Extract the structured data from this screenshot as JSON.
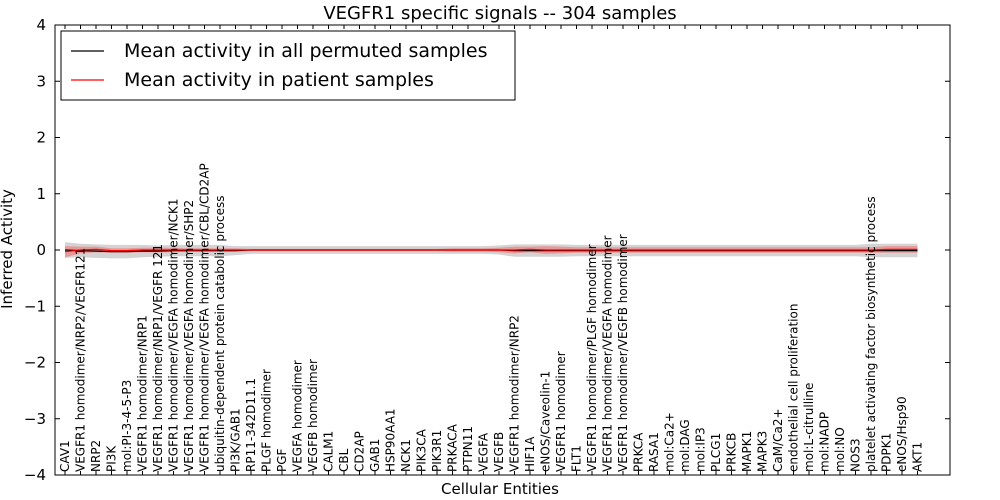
{
  "chart_data": {
    "type": "line",
    "title": "VEGFR1 specific signals -- 304 samples",
    "xlabel": "Cellular Entities",
    "ylabel": "Inferred Activity",
    "ylim": [
      -4,
      4
    ],
    "yticks": [
      -4,
      -3,
      -2,
      -1,
      0,
      1,
      2,
      3,
      4
    ],
    "ytick_labels": [
      "−4",
      "−3",
      "−2",
      "−1",
      "0",
      "1",
      "2",
      "3",
      "4"
    ],
    "legend_position": "top-left",
    "grid": false,
    "categories": [
      "CAV1",
      "VEGFR1 homodimer/NRP2/VEGFR121",
      "NRP2",
      "PI3K",
      "mol:PI-3-4-5-P3",
      "VEGFR1 homodimer/NRP1",
      "VEGFR1 homodimer/NRP1/VEGFR 121",
      "VEGFR1 homodimer/VEGFA homodimer/NCK1",
      "VEGFR1 homodimer/VEGFA homodimer/SHP2",
      "VEGFR1 homodimer/VEGFA homodimer/CBL/CD2AP",
      "ubiquitin-dependent protein catabolic process",
      "PI3K/GAB1",
      "RP11-342D11.1",
      "PLGF homodimer",
      "PGF",
      "VEGFA homodimer",
      "VEGFB homodimer",
      "CALM1",
      "CBL",
      "CD2AP",
      "GAB1",
      "HSP90AA1",
      "NCK1",
      "PIK3CA",
      "PIK3R1",
      "PRKACA",
      "PTPN11",
      "VEGFA",
      "VEGFB",
      "VEGFR1 homodimer/NRP2",
      "HIF1A",
      "eNOS/Caveolin-1",
      "VEGFR1 homodimer",
      "FLT1",
      "VEGFR1 homodimer/PLGF homodimer",
      "VEGFR1 homodimer/VEGFA homodimer",
      "VEGFR1 homodimer/VEGFB homodimer",
      "PRKCA",
      "RASA1",
      "mol:Ca2+",
      "mol:DAG",
      "mol:IP3",
      "PLCG1",
      "PRKCB",
      "MAPK1",
      "MAPK3",
      "CaM/Ca2+",
      "endothelial cell proliferation",
      "mol:L-citrulline",
      "mol:NADP",
      "mol:NO",
      "NOS3",
      "platelet activating factor biosynthetic process",
      "PDPK1",
      "eNOS/Hsp90",
      "AKT1"
    ],
    "series": [
      {
        "name": "Mean activity in all permuted samples",
        "color": "#000000",
        "band_color": "#c8c8c8",
        "values": [
          0.0,
          -0.01,
          -0.02,
          -0.03,
          -0.03,
          -0.02,
          -0.02,
          -0.01,
          -0.01,
          -0.01,
          -0.01,
          -0.01,
          0.0,
          0.0,
          0.0,
          0.0,
          0.0,
          0.0,
          0.0,
          0.0,
          0.0,
          0.0,
          0.0,
          0.0,
          0.0,
          0.0,
          0.0,
          0.0,
          0.0,
          -0.01,
          -0.01,
          -0.01,
          -0.01,
          -0.01,
          -0.01,
          -0.01,
          -0.01,
          -0.01,
          -0.01,
          -0.01,
          -0.01,
          -0.01,
          -0.01,
          -0.01,
          -0.01,
          -0.01,
          -0.01,
          -0.01,
          -0.01,
          -0.01,
          -0.01,
          -0.01,
          -0.01,
          -0.01,
          -0.01,
          -0.01
        ],
        "band_halfwidth": [
          0.14,
          0.12,
          0.12,
          0.12,
          0.12,
          0.11,
          0.1,
          0.1,
          0.1,
          0.1,
          0.1,
          0.08,
          0.07,
          0.07,
          0.07,
          0.07,
          0.07,
          0.07,
          0.07,
          0.07,
          0.07,
          0.07,
          0.07,
          0.07,
          0.07,
          0.07,
          0.07,
          0.07,
          0.08,
          0.11,
          0.11,
          0.11,
          0.11,
          0.1,
          0.1,
          0.1,
          0.1,
          0.1,
          0.1,
          0.1,
          0.1,
          0.1,
          0.1,
          0.1,
          0.1,
          0.1,
          0.1,
          0.1,
          0.1,
          0.1,
          0.1,
          0.1,
          0.12,
          0.12,
          0.12,
          0.12
        ]
      },
      {
        "name": "Mean activity in patient samples",
        "color": "#ff0000",
        "band_color": "#f08080",
        "values": [
          -0.03,
          0.0,
          0.01,
          -0.01,
          -0.01,
          0.0,
          0.0,
          0.0,
          0.0,
          0.0,
          0.0,
          0.0,
          0.0,
          0.0,
          0.0,
          0.0,
          0.0,
          0.0,
          0.0,
          0.0,
          0.0,
          0.0,
          0.0,
          0.0,
          0.0,
          0.0,
          0.0,
          0.0,
          0.0,
          0.0,
          0.01,
          0.0,
          0.0,
          0.0,
          0.0,
          0.0,
          0.0,
          0.0,
          0.0,
          0.0,
          0.0,
          0.0,
          0.0,
          0.0,
          0.0,
          0.0,
          0.0,
          0.0,
          0.0,
          0.0,
          0.0,
          0.0,
          0.0,
          0.01,
          0.01,
          0.01
        ],
        "band_halfwidth": [
          0.1,
          0.06,
          0.05,
          0.04,
          0.04,
          0.04,
          0.04,
          0.04,
          0.03,
          0.03,
          0.03,
          0.03,
          0.02,
          0.02,
          0.02,
          0.02,
          0.02,
          0.02,
          0.02,
          0.02,
          0.02,
          0.02,
          0.02,
          0.02,
          0.02,
          0.03,
          0.03,
          0.03,
          0.04,
          0.06,
          0.05,
          0.07,
          0.06,
          0.05,
          0.05,
          0.05,
          0.05,
          0.05,
          0.05,
          0.05,
          0.05,
          0.05,
          0.05,
          0.05,
          0.05,
          0.05,
          0.05,
          0.05,
          0.05,
          0.05,
          0.05,
          0.05,
          0.05,
          0.06,
          0.06,
          0.06
        ]
      }
    ]
  }
}
